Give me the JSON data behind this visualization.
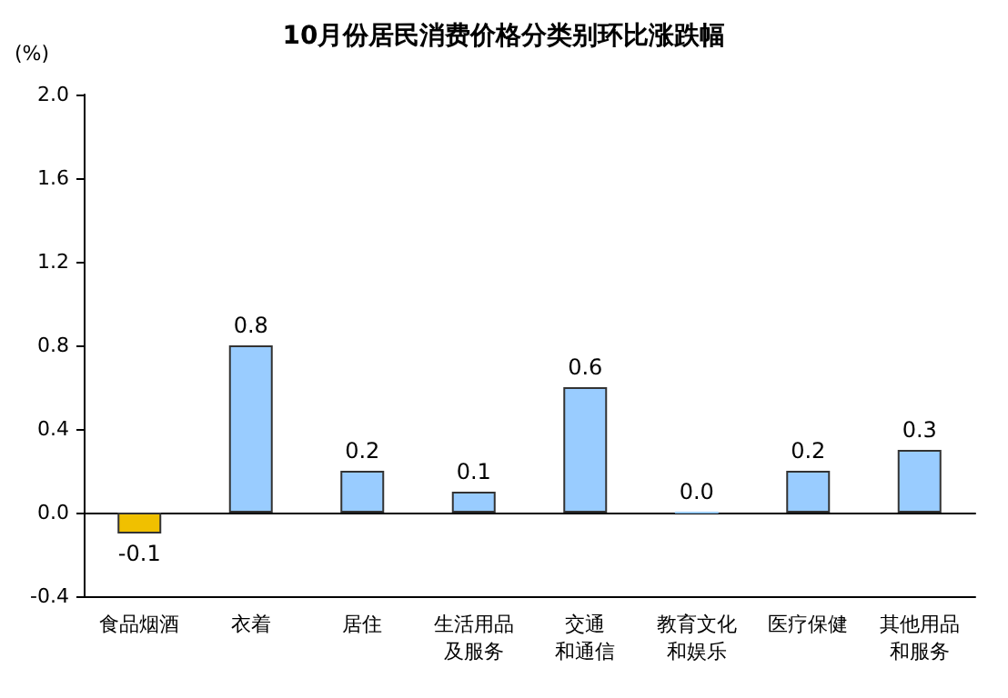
{
  "chart_data": {
    "type": "bar",
    "title": "10月份居民消费价格分类别环比涨跌幅",
    "ylabel": "(%)",
    "categories": [
      "食品烟酒",
      "衣着",
      "居住",
      "生活用品及服务",
      "交通和通信",
      "教育文化和娱乐",
      "医疗保健",
      "其他用品和服务"
    ],
    "values": [
      -0.1,
      0.8,
      0.2,
      0.1,
      0.6,
      0.0,
      0.2,
      0.3
    ],
    "value_labels": [
      "-0.1",
      "0.8",
      "0.2",
      "0.1",
      "0.6",
      "0.0",
      "0.2",
      "0.3"
    ],
    "colors": [
      "#f0c000",
      "#99ccff",
      "#99ccff",
      "#99ccff",
      "#99ccff",
      "#99ccff",
      "#99ccff",
      "#99ccff"
    ],
    "ylim": [
      -0.4,
      2.0
    ],
    "yticks": [
      {
        "value": -0.4,
        "label": "-0.4"
      },
      {
        "value": 0,
        "label": "0.0"
      },
      {
        "value": 0.4,
        "label": "0.4"
      },
      {
        "value": 0.8,
        "label": "0.8"
      },
      {
        "value": 1.2,
        "label": "1.2"
      },
      {
        "value": 1.6,
        "label": "1.6"
      },
      {
        "value": 2.0,
        "label": "2.0"
      }
    ]
  }
}
